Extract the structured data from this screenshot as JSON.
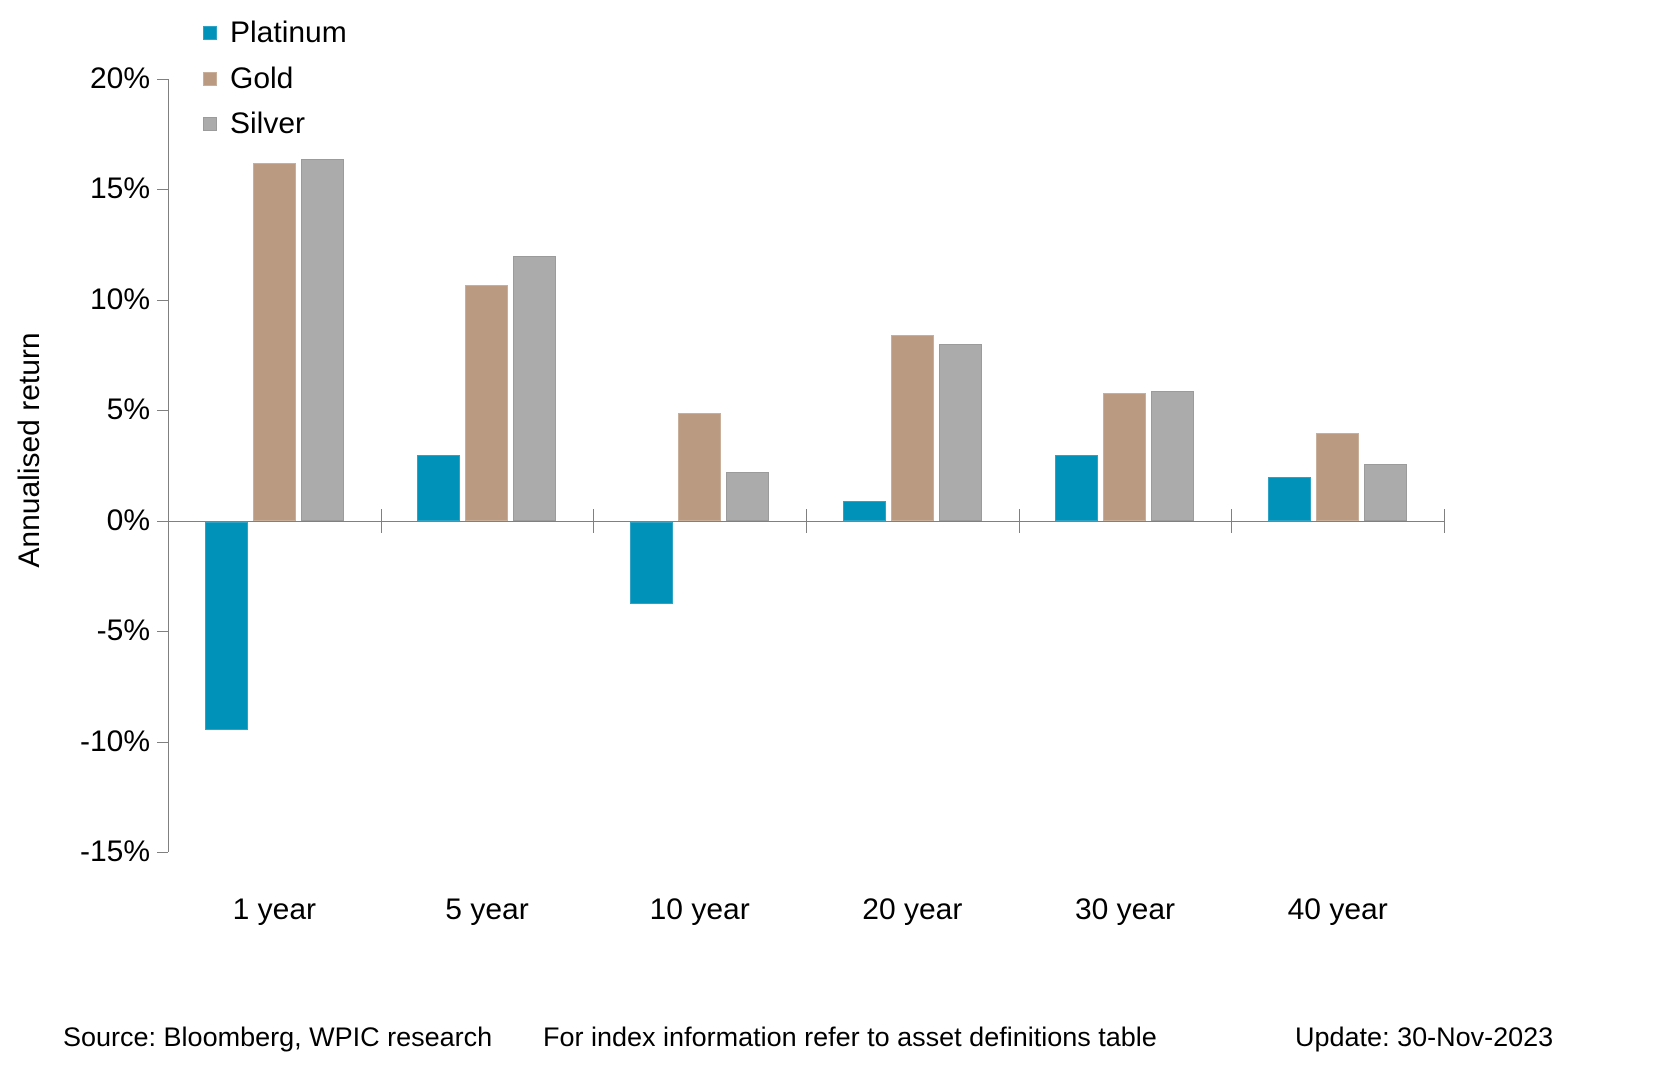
{
  "chart_data": {
    "type": "bar",
    "title": "",
    "categories": [
      "1 year",
      "5 year",
      "10 year",
      "20 year",
      "30 year",
      "40 year"
    ],
    "series": [
      {
        "name": "Platinum",
        "color": "#0092b8",
        "border": "#2da4c6",
        "texture": "solid",
        "values": [
          -9.4,
          3.0,
          -3.7,
          0.9,
          3.0,
          2.0
        ]
      },
      {
        "name": "Gold",
        "color": "#bb9a82",
        "border": "#c9ae99",
        "texture": "solid",
        "values": [
          16.2,
          10.7,
          4.9,
          8.4,
          5.8,
          4.0
        ]
      },
      {
        "name": "Silver",
        "color": "#ababab",
        "border": "#9b9b9b",
        "texture": "dotted",
        "values": [
          16.4,
          12.0,
          2.2,
          8.0,
          5.9,
          2.6
        ]
      }
    ],
    "xlabel": "",
    "ylabel": "Annualised return",
    "ylim": [
      -15,
      20
    ],
    "ytick_step": 5,
    "ytick_labels": [
      "20%",
      "15%",
      "10%",
      "5%",
      "0%",
      "-5%",
      "-10%",
      "-15%"
    ],
    "legend_position": "top-left",
    "grid": false
  },
  "footer": {
    "source": "Source: Bloomberg, WPIC research",
    "note": "For index information refer to asset definitions table",
    "update": "Update: 30-Nov-2023"
  },
  "colors": {
    "axis": "#808080",
    "text": "#000000",
    "background": "#ffffff"
  }
}
